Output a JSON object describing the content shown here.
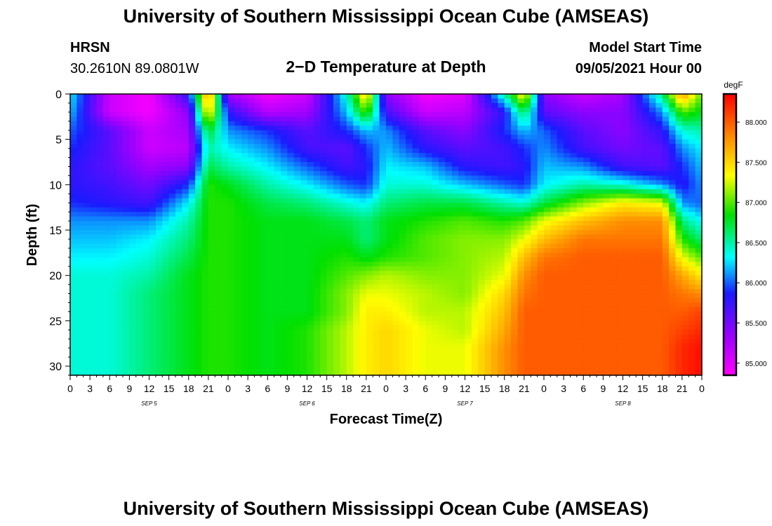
{
  "header": {
    "title": "University of Southern Mississippi Ocean Cube (AMSEAS)",
    "station": "HRSN",
    "coords": "30.2610N  89.0801W",
    "plot_title": "2−D Temperature at Depth",
    "model_start_label": "Model Start Time",
    "model_start_value": "09/05/2021 Hour 00"
  },
  "footer": {
    "title": "University of Southern Mississippi Ocean Cube (AMSEAS)"
  },
  "chart_data": {
    "type": "heatmap",
    "title": "2−D Temperature at Depth",
    "xlabel": "Forecast Time(Z)",
    "ylabel": "Depth (ft)",
    "ylim": [
      0,
      31
    ],
    "y_inverted": true,
    "xlim_hours": [
      0,
      96
    ],
    "x_tick_labels": [
      "0",
      "3",
      "6",
      "9",
      "12",
      "15",
      "18",
      "21",
      "0",
      "3",
      "6",
      "9",
      "12",
      "15",
      "18",
      "21",
      "0",
      "3",
      "6",
      "9",
      "12",
      "15",
      "18",
      "21",
      "0",
      "3",
      "6",
      "9",
      "12",
      "15",
      "18",
      "21",
      "0"
    ],
    "y_tick_labels": [
      "0",
      "5",
      "10",
      "15",
      "20",
      "25",
      "30"
    ],
    "day_labels": [
      "SEP 5",
      "SEP 6",
      "SEP 7",
      "SEP 8"
    ],
    "colorbar": {
      "unit": "degF",
      "range": [
        84.85,
        88.35
      ],
      "ticks": [
        "85.000",
        "85.500",
        "86.000",
        "86.500",
        "87.000",
        "87.500",
        "88.000"
      ]
    },
    "time_columns_hours": [
      0,
      6,
      12,
      18,
      21,
      24,
      30,
      36,
      42,
      45,
      48,
      54,
      60,
      66,
      69,
      72,
      78,
      84,
      90,
      93,
      96
    ],
    "depths_ft": [
      0,
      2,
      4,
      6,
      8,
      10,
      12,
      14,
      16,
      18,
      20,
      22,
      24,
      26,
      28,
      30,
      31
    ],
    "temperature_degF": [
      [
        86.3,
        85.1,
        84.9,
        85.8,
        87.9,
        85.3,
        84.9,
        85.1,
        86.4,
        87.6,
        85.4,
        84.9,
        85.0,
        86.5,
        87.5,
        85.4,
        85.1,
        85.3,
        86.6,
        87.8,
        87.0
      ],
      [
        86.2,
        85.1,
        84.9,
        85.4,
        87.5,
        85.8,
        85.2,
        85.3,
        86.2,
        87.0,
        85.7,
        85.1,
        85.2,
        85.8,
        86.7,
        85.6,
        85.4,
        85.4,
        86.1,
        87.0,
        86.8
      ],
      [
        86.0,
        85.6,
        85.1,
        85.3,
        86.8,
        86.1,
        85.9,
        85.6,
        85.9,
        86.2,
        86.1,
        85.6,
        85.4,
        85.9,
        86.2,
        86.0,
        85.6,
        85.4,
        85.8,
        86.4,
        86.5
      ],
      [
        85.9,
        85.6,
        85.1,
        85.2,
        86.5,
        86.3,
        86.1,
        85.7,
        85.6,
        85.9,
        86.2,
        85.8,
        85.6,
        85.7,
        85.9,
        86.1,
        85.7,
        85.5,
        85.6,
        86.1,
        86.3
      ],
      [
        85.8,
        85.6,
        85.3,
        85.4,
        86.7,
        86.5,
        86.3,
        86.0,
        85.7,
        85.8,
        86.3,
        86.2,
        85.8,
        85.7,
        85.8,
        86.2,
        86.1,
        85.7,
        85.6,
        85.9,
        86.2
      ],
      [
        85.8,
        85.7,
        85.5,
        85.9,
        86.9,
        86.8,
        86.5,
        86.3,
        86.0,
        85.9,
        86.4,
        86.4,
        86.2,
        86.0,
        85.9,
        86.3,
        86.5,
        86.4,
        86.1,
        85.8,
        86.1
      ],
      [
        85.9,
        85.8,
        85.7,
        86.3,
        86.9,
        86.9,
        86.7,
        86.6,
        86.4,
        86.3,
        86.6,
        86.7,
        86.7,
        86.5,
        86.4,
        86.7,
        87.1,
        87.4,
        87.3,
        86.1,
        86.0
      ],
      [
        86.1,
        86.1,
        86.1,
        86.5,
        86.9,
        86.9,
        86.8,
        86.8,
        86.7,
        86.6,
        86.8,
        86.9,
        87.0,
        86.9,
        87.0,
        87.3,
        87.6,
        87.8,
        87.8,
        86.6,
        86.3
      ],
      [
        86.2,
        86.2,
        86.3,
        86.6,
        86.9,
        86.9,
        86.8,
        86.8,
        86.8,
        86.6,
        86.8,
        87.0,
        87.1,
        87.1,
        87.3,
        87.6,
        87.9,
        87.9,
        87.9,
        86.9,
        86.6
      ],
      [
        86.3,
        86.3,
        86.4,
        86.7,
        86.9,
        86.9,
        86.8,
        86.8,
        86.9,
        86.8,
        86.9,
        87.0,
        87.1,
        87.2,
        87.6,
        87.9,
        88.0,
        88.0,
        88.0,
        87.3,
        87.0
      ],
      [
        86.4,
        86.4,
        86.5,
        86.8,
        86.9,
        86.9,
        86.8,
        86.8,
        87.0,
        87.1,
        87.2,
        87.1,
        87.1,
        87.3,
        87.8,
        88.0,
        88.0,
        88.0,
        88.0,
        87.7,
        87.4
      ],
      [
        86.4,
        86.4,
        86.6,
        86.8,
        86.9,
        86.9,
        86.8,
        86.8,
        87.1,
        87.3,
        87.3,
        87.2,
        87.1,
        87.5,
        87.9,
        88.0,
        88.0,
        88.0,
        88.0,
        87.9,
        87.8
      ],
      [
        86.4,
        86.4,
        86.6,
        86.8,
        86.9,
        86.9,
        86.8,
        86.8,
        87.1,
        87.4,
        87.4,
        87.2,
        87.2,
        87.6,
        88.0,
        88.0,
        88.0,
        88.0,
        88.0,
        88.0,
        88.1
      ],
      [
        86.4,
        86.4,
        86.6,
        86.8,
        86.9,
        86.9,
        86.8,
        86.9,
        87.2,
        87.4,
        87.5,
        87.3,
        87.2,
        87.7,
        88.0,
        88.0,
        88.0,
        88.0,
        88.0,
        88.1,
        88.2
      ],
      [
        86.4,
        86.4,
        86.6,
        86.8,
        86.9,
        86.9,
        86.8,
        86.9,
        87.2,
        87.4,
        87.5,
        87.3,
        87.3,
        87.8,
        88.0,
        88.0,
        88.0,
        88.0,
        88.0,
        88.2,
        88.3
      ],
      [
        86.4,
        86.4,
        86.6,
        86.8,
        86.9,
        86.9,
        86.8,
        86.9,
        87.2,
        87.4,
        87.5,
        87.3,
        87.3,
        87.8,
        88.0,
        88.0,
        88.0,
        88.0,
        88.0,
        88.2,
        88.3
      ],
      [
        86.4,
        86.4,
        86.6,
        86.8,
        86.9,
        86.9,
        86.8,
        86.9,
        87.2,
        87.4,
        87.5,
        87.3,
        87.3,
        87.8,
        88.0,
        88.0,
        88.0,
        88.0,
        88.0,
        88.2,
        88.3
      ]
    ]
  }
}
